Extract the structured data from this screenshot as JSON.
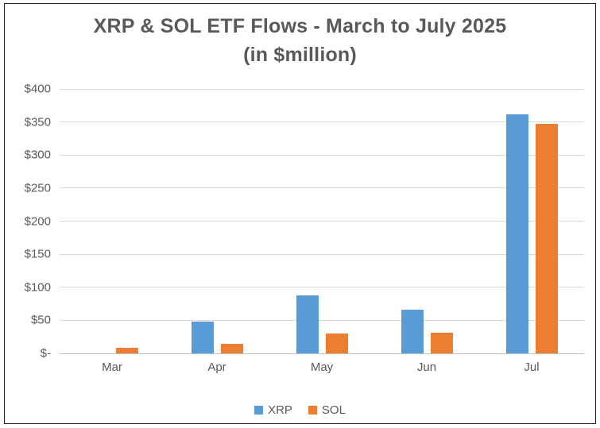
{
  "chart_data": {
    "type": "bar",
    "title": "XRP &amp; SOL ETF Flows - March to July 2025",
    "title_text": "XRP & SOL ETF Flows - March to July 2025",
    "subtitle": "(in $million)",
    "categories": [
      "Mar",
      "Apr",
      "May",
      "Jun",
      "Jul"
    ],
    "series": [
      {
        "name": "XRP",
        "color": "#5B9BD5",
        "values": [
          0,
          48,
          88,
          66,
          362
        ]
      },
      {
        "name": "SOL",
        "color": "#ED7D31",
        "values": [
          8,
          14,
          30,
          31,
          347
        ]
      }
    ],
    "xlabel": "",
    "ylabel": "",
    "ylim": [
      0,
      400
    ],
    "ytick_step": 50,
    "ytick_labels_top_to_bottom": [
      "$400",
      "$350",
      "$300",
      "$250",
      "$200",
      "$150",
      "$100",
      "$50",
      "$-"
    ],
    "grid": true,
    "legend_position": "bottom"
  },
  "colors": {
    "text": "#595959",
    "gridline": "#D9D9D9",
    "axis_line": "#BFBFBF",
    "frame_border": "#262626",
    "background": "#FFFFFF",
    "xrp_blue": "#5B9BD5",
    "sol_orange": "#ED7D31"
  }
}
